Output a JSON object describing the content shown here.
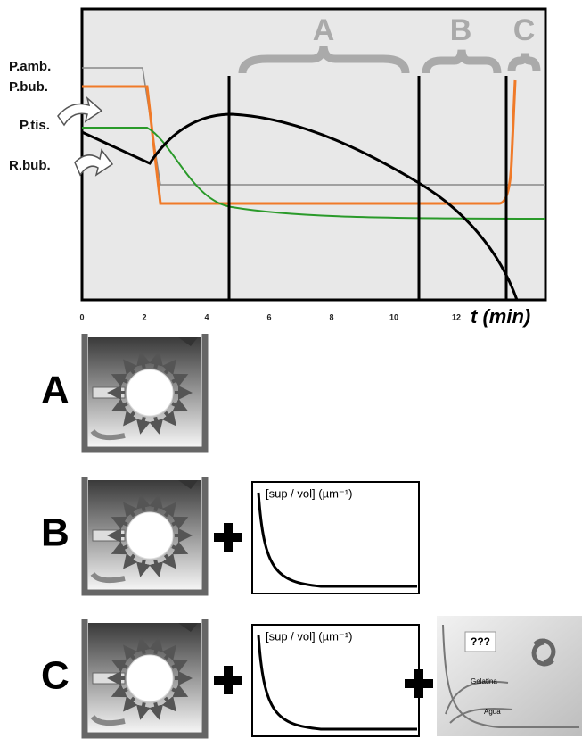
{
  "top": {
    "curve_labels": [
      "P.amb.",
      "P.bub.",
      "P.tis.",
      "R.bub."
    ],
    "phases": [
      "A",
      "B",
      "C"
    ],
    "x_ticks": [
      0,
      2,
      4,
      6,
      8,
      10,
      12
    ],
    "x_label": "t (min)"
  },
  "rows": [
    {
      "label": "A"
    },
    {
      "label": "B",
      "graph_label": "[sup / vol] (µm⁻¹)"
    },
    {
      "label": "C",
      "graph_label": "[sup / vol] (µm⁻¹)"
    }
  ],
  "inset": {
    "question": "???",
    "labels": [
      "Gelatina",
      "Agua"
    ]
  }
}
